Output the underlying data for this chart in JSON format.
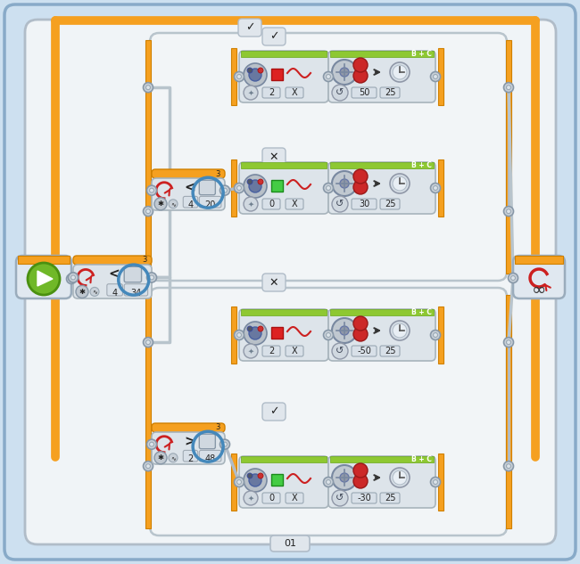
{
  "bg_color": "#cde0f0",
  "frame_bg": "#edf4f8",
  "orange": "#f5a020",
  "dark_orange": "#d08000",
  "green": "#8ec832",
  "block_bg": "#dde4ea",
  "block_border": "#a8b4bc",
  "wire_gray": "#a0aab2",
  "white": "#ffffff",
  "red_sq": "#dd2222",
  "green_sq": "#44cc44",
  "blue_circle": "#4488bb",
  "outer_frame_bg": "#f0f4f7",
  "outer_frame_border": "#b0bcc8",
  "inner_frame_bg": "#f2f5f7",
  "inner_frame_border": "#b8c4cc",
  "motor_block1_values": [
    "2",
    "X",
    "50",
    "25"
  ],
  "motor_block2_values": [
    "0",
    "X",
    "30",
    "25"
  ],
  "motor_block3_values": [
    "2",
    "X",
    "-50",
    "25"
  ],
  "motor_block4_values": [
    "0",
    "X",
    "-30",
    "25"
  ],
  "title": "01",
  "loop_symbol": "∞"
}
